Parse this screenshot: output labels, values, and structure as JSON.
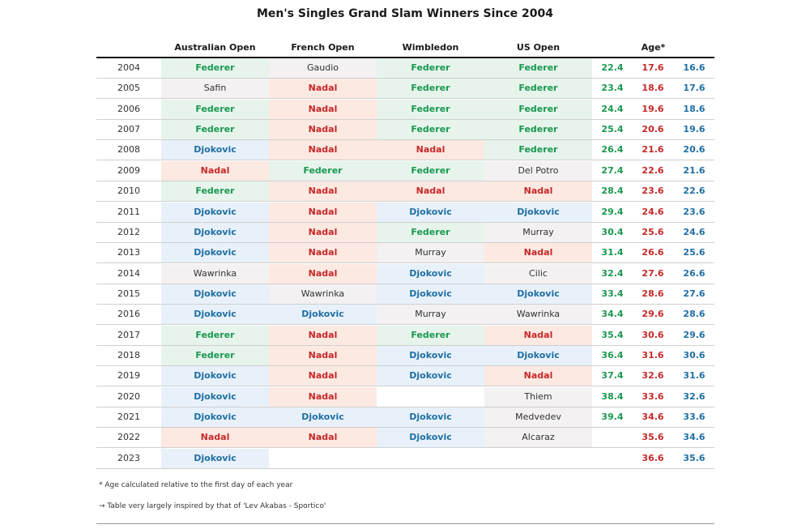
{
  "chart_data": {
    "type": "table",
    "title": "Men's Singles Grand Slam Winners Since 2004",
    "columns": [
      "Australian Open",
      "French Open",
      "Wimbledon",
      "US Open",
      "Age*"
    ],
    "rows": [
      {
        "year": "2004",
        "ao": "Federer",
        "fo": "Gaudio",
        "wim": "Federer",
        "uso": "Federer",
        "ages": [
          "22.4",
          "17.6",
          "16.6"
        ]
      },
      {
        "year": "2005",
        "ao": "Safin",
        "fo": "Nadal",
        "wim": "Federer",
        "uso": "Federer",
        "ages": [
          "23.4",
          "18.6",
          "17.6"
        ]
      },
      {
        "year": "2006",
        "ao": "Federer",
        "fo": "Nadal",
        "wim": "Federer",
        "uso": "Federer",
        "ages": [
          "24.4",
          "19.6",
          "18.6"
        ]
      },
      {
        "year": "2007",
        "ao": "Federer",
        "fo": "Nadal",
        "wim": "Federer",
        "uso": "Federer",
        "ages": [
          "25.4",
          "20.6",
          "19.6"
        ]
      },
      {
        "year": "2008",
        "ao": "Djokovic",
        "fo": "Nadal",
        "wim": "Nadal",
        "uso": "Federer",
        "ages": [
          "26.4",
          "21.6",
          "20.6"
        ]
      },
      {
        "year": "2009",
        "ao": "Nadal",
        "fo": "Federer",
        "wim": "Federer",
        "uso": "Del Potro",
        "ages": [
          "27.4",
          "22.6",
          "21.6"
        ]
      },
      {
        "year": "2010",
        "ao": "Federer",
        "fo": "Nadal",
        "wim": "Nadal",
        "uso": "Nadal",
        "ages": [
          "28.4",
          "23.6",
          "22.6"
        ]
      },
      {
        "year": "2011",
        "ao": "Djokovic",
        "fo": "Nadal",
        "wim": "Djokovic",
        "uso": "Djokovic",
        "ages": [
          "29.4",
          "24.6",
          "23.6"
        ]
      },
      {
        "year": "2012",
        "ao": "Djokovic",
        "fo": "Nadal",
        "wim": "Federer",
        "uso": "Murray",
        "ages": [
          "30.4",
          "25.6",
          "24.6"
        ]
      },
      {
        "year": "2013",
        "ao": "Djokovic",
        "fo": "Nadal",
        "wim": "Murray",
        "uso": "Nadal",
        "ages": [
          "31.4",
          "26.6",
          "25.6"
        ]
      },
      {
        "year": "2014",
        "ao": "Wawrinka",
        "fo": "Nadal",
        "wim": "Djokovic",
        "uso": "Cilic",
        "ages": [
          "32.4",
          "27.6",
          "26.6"
        ]
      },
      {
        "year": "2015",
        "ao": "Djokovic",
        "fo": "Wawrinka",
        "wim": "Djokovic",
        "uso": "Djokovic",
        "ages": [
          "33.4",
          "28.6",
          "27.6"
        ]
      },
      {
        "year": "2016",
        "ao": "Djokovic",
        "fo": "Djokovic",
        "wim": "Murray",
        "uso": "Wawrinka",
        "ages": [
          "34.4",
          "29.6",
          "28.6"
        ]
      },
      {
        "year": "2017",
        "ao": "Federer",
        "fo": "Nadal",
        "wim": "Federer",
        "uso": "Nadal",
        "ages": [
          "35.4",
          "30.6",
          "29.6"
        ]
      },
      {
        "year": "2018",
        "ao": "Federer",
        "fo": "Nadal",
        "wim": "Djokovic",
        "uso": "Djokovic",
        "ages": [
          "36.4",
          "31.6",
          "30.6"
        ]
      },
      {
        "year": "2019",
        "ao": "Djokovic",
        "fo": "Nadal",
        "wim": "Djokovic",
        "uso": "Nadal",
        "ages": [
          "37.4",
          "32.6",
          "31.6"
        ]
      },
      {
        "year": "2020",
        "ao": "Djokovic",
        "fo": "Nadal",
        "wim": "",
        "uso": "Thiem",
        "ages": [
          "38.4",
          "33.6",
          "32.6"
        ]
      },
      {
        "year": "2021",
        "ao": "Djokovic",
        "fo": "Djokovic",
        "wim": "Djokovic",
        "uso": "Medvedev",
        "ages": [
          "39.4",
          "34.6",
          "33.6"
        ]
      },
      {
        "year": "2022",
        "ao": "Nadal",
        "fo": "Nadal",
        "wim": "Djokovic",
        "uso": "Alcaraz",
        "ages": [
          "",
          "35.6",
          "34.6"
        ]
      },
      {
        "year": "2023",
        "ao": "Djokovic",
        "fo": "",
        "wim": "",
        "uso": "",
        "ages": [
          "",
          "36.6",
          "35.6"
        ]
      }
    ],
    "player_colors": {
      "Federer": {
        "text": "#1a9850",
        "bg": "#e6f4ec"
      },
      "Nadal": {
        "text": "#c62828",
        "bg": "#fce9e2"
      },
      "Djokovic": {
        "text": "#1f6fa5",
        "bg": "#e8f1f9"
      },
      "other": {
        "text": "#333333",
        "bg": "#f3f1f1"
      }
    },
    "age_colors": [
      "#1a9850",
      "#c62828",
      "#1f6fa5"
    ],
    "notes": [
      "* Age calculated relative to the first day of each year",
      "→ Table very largely inspired by that of 'Lev Akabas - Sportico'"
    ]
  }
}
